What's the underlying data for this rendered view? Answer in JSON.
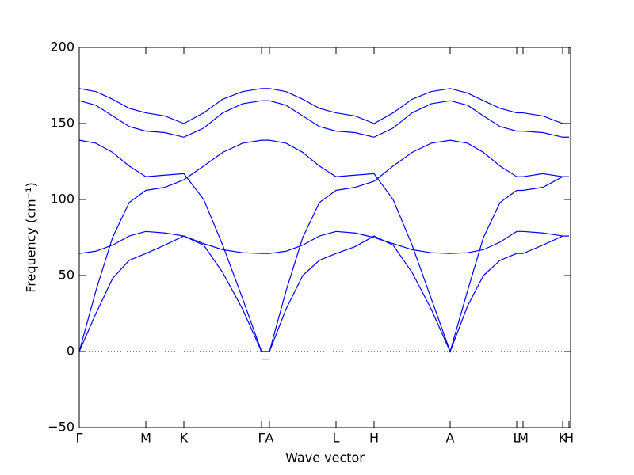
{
  "chart_data": {
    "type": "line",
    "xlabel": "Wave vector",
    "ylabel": "Frequency (cm⁻¹)",
    "x": [
      0,
      0.21,
      0.42,
      0.63,
      0.84,
      1.08,
      1.32,
      1.57,
      1.81,
      2.06,
      2.3,
      2.4,
      2.61,
      2.82,
      3.03,
      3.24,
      3.48,
      3.72,
      3.96,
      4.2,
      4.44,
      4.68,
      4.9,
      5.1,
      5.31,
      5.52,
      5.6,
      5.85,
      6.1,
      6.18
    ],
    "series": [
      {
        "color": "#0000ff",
        "values": [
          173,
          171,
          166,
          160,
          157,
          155,
          150,
          157,
          166,
          171,
          173,
          173,
          171,
          166,
          160,
          157,
          155,
          150,
          157,
          166,
          171,
          173,
          170,
          165,
          160,
          157,
          157,
          155,
          150,
          150
        ]
      },
      {
        "color": "#0000ff",
        "values": [
          165,
          162,
          155,
          148,
          145,
          144,
          141,
          147,
          157,
          163,
          165,
          165,
          162,
          155,
          148,
          145,
          144,
          141,
          147,
          157,
          163,
          165,
          162,
          155,
          148,
          145,
          145,
          144,
          141,
          141
        ]
      },
      {
        "color": "#0000ff",
        "values": [
          139,
          137,
          131,
          122,
          115,
          116,
          117,
          100,
          70,
          35,
          0,
          0,
          40,
          75,
          98,
          106,
          108,
          112,
          122,
          131,
          137,
          139,
          137,
          131,
          122,
          115,
          115,
          117,
          115,
          115
        ]
      },
      {
        "color": "#0000ff",
        "values": [
          0,
          40,
          75,
          98,
          106,
          108,
          113,
          122,
          131,
          137,
          139,
          139,
          137,
          131,
          122,
          115,
          116,
          117,
          100,
          70,
          35,
          0,
          40,
          75,
          98,
          106,
          106,
          108,
          115,
          115
        ]
      },
      {
        "color": "#0000ff",
        "values": [
          64.5,
          66,
          70,
          76,
          79,
          78,
          76,
          71,
          67,
          65,
          64.5,
          64.5,
          66,
          70,
          76,
          79,
          78,
          75,
          71,
          67,
          65,
          64.5,
          65,
          67,
          72,
          79,
          79,
          78,
          76,
          76
        ]
      },
      {
        "color": "#0000ff",
        "values": [
          0,
          25,
          48,
          60,
          64.5,
          70,
          76,
          70,
          52,
          28,
          0,
          0,
          28,
          50,
          60,
          64.5,
          69,
          76,
          70,
          52,
          28,
          0,
          30,
          50,
          60,
          64.5,
          64.5,
          70,
          76,
          76
        ]
      },
      {
        "color": "#0000ff",
        "values": [
          null,
          null,
          null,
          null,
          null,
          null,
          null,
          null,
          null,
          null,
          -5,
          -5,
          null,
          null,
          null,
          null,
          null,
          null,
          null,
          null,
          null,
          null,
          null,
          null,
          null,
          null,
          null,
          null,
          null,
          null
        ]
      }
    ],
    "xlim": [
      0,
      6.2
    ],
    "xticks": [
      {
        "value": 0,
        "label": "Γ"
      },
      {
        "value": 0.84,
        "label": "M"
      },
      {
        "value": 1.32,
        "label": "K"
      },
      {
        "value": 2.3,
        "label": "Γ"
      },
      {
        "value": 2.4,
        "label": "A"
      },
      {
        "value": 3.24,
        "label": "L"
      },
      {
        "value": 3.72,
        "label": "H"
      },
      {
        "value": 4.68,
        "label": "A"
      },
      {
        "value": 5.52,
        "label": "L"
      },
      {
        "value": 5.6,
        "label": "M"
      },
      {
        "value": 6.1,
        "label": "K"
      },
      {
        "value": 6.18,
        "label": "H"
      }
    ],
    "ylim": [
      -50,
      200
    ],
    "yticks": [
      {
        "value": -50,
        "label": "−50"
      },
      0,
      50,
      100,
      150,
      200
    ],
    "reference_line": 0,
    "grid": false
  }
}
